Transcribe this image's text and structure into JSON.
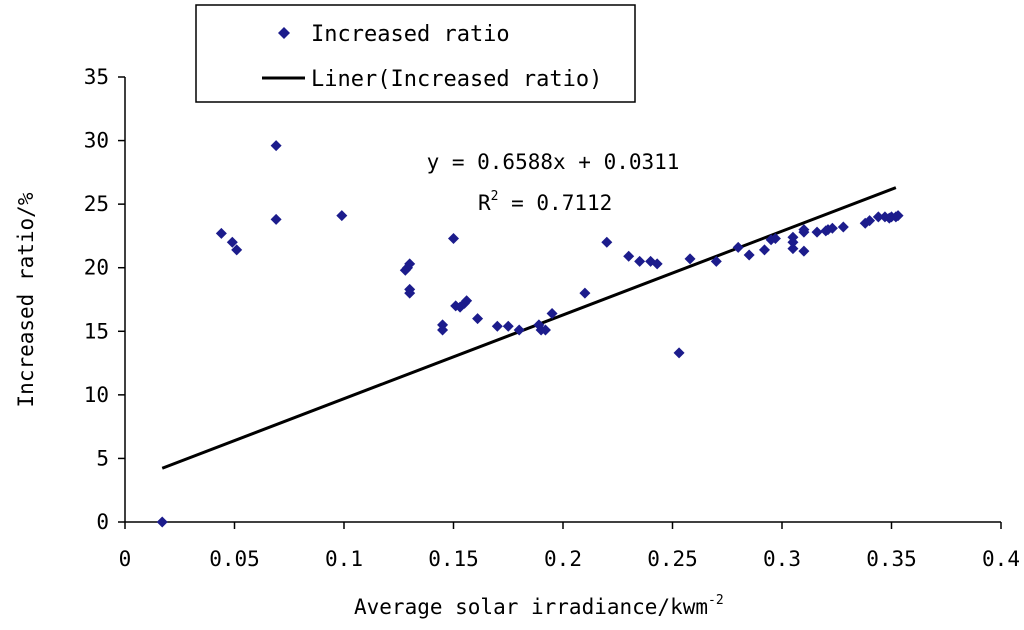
{
  "chart_data": {
    "type": "scatter",
    "xlabel": "Average solar irradiance/kwm",
    "xlabel_superscript": "-2",
    "ylabel": "Increased ratio/%",
    "xlim": [
      0,
      0.4
    ],
    "ylim": [
      0,
      35
    ],
    "xticks": [
      0,
      0.05,
      0.1,
      0.15,
      0.2,
      0.25,
      0.3,
      0.35,
      0.4
    ],
    "xtick_labels": [
      "0",
      "0.05",
      "0.1",
      "0.15",
      "0.2",
      "0.25",
      "0.3",
      "0.35",
      "0.4"
    ],
    "yticks": [
      0,
      5,
      10,
      15,
      20,
      25,
      30,
      35
    ],
    "ytick_labels": [
      "0",
      "5",
      "10",
      "15",
      "20",
      "25",
      "30",
      "35"
    ],
    "grid": false,
    "legend_position": "top-left",
    "series": [
      {
        "name": "Increased ratio",
        "marker": "diamond",
        "color": "#1c1c8c",
        "points": [
          [
            0.017,
            0.0
          ],
          [
            0.044,
            22.7
          ],
          [
            0.049,
            22.0
          ],
          [
            0.051,
            21.4
          ],
          [
            0.069,
            29.6
          ],
          [
            0.069,
            23.8
          ],
          [
            0.099,
            24.1
          ],
          [
            0.128,
            19.8
          ],
          [
            0.129,
            20.0
          ],
          [
            0.13,
            20.3
          ],
          [
            0.13,
            18.3
          ],
          [
            0.13,
            18.0
          ],
          [
            0.145,
            15.5
          ],
          [
            0.145,
            15.1
          ],
          [
            0.15,
            22.3
          ],
          [
            0.151,
            17.0
          ],
          [
            0.153,
            16.9
          ],
          [
            0.155,
            17.2
          ],
          [
            0.156,
            17.4
          ],
          [
            0.161,
            16.0
          ],
          [
            0.17,
            15.4
          ],
          [
            0.175,
            15.4
          ],
          [
            0.18,
            15.1
          ],
          [
            0.189,
            15.5
          ],
          [
            0.19,
            15.1
          ],
          [
            0.192,
            15.1
          ],
          [
            0.195,
            16.4
          ],
          [
            0.21,
            18.0
          ],
          [
            0.22,
            22.0
          ],
          [
            0.23,
            20.9
          ],
          [
            0.235,
            20.5
          ],
          [
            0.24,
            20.5
          ],
          [
            0.243,
            20.3
          ],
          [
            0.253,
            13.3
          ],
          [
            0.258,
            20.7
          ],
          [
            0.27,
            20.5
          ],
          [
            0.28,
            21.6
          ],
          [
            0.285,
            21.0
          ],
          [
            0.292,
            21.4
          ],
          [
            0.295,
            22.2
          ],
          [
            0.297,
            22.3
          ],
          [
            0.305,
            21.5
          ],
          [
            0.305,
            22.0
          ],
          [
            0.305,
            22.4
          ],
          [
            0.31,
            21.3
          ],
          [
            0.31,
            22.8
          ],
          [
            0.31,
            23.0
          ],
          [
            0.316,
            22.8
          ],
          [
            0.32,
            22.9
          ],
          [
            0.321,
            23.0
          ],
          [
            0.323,
            23.1
          ],
          [
            0.328,
            23.2
          ],
          [
            0.338,
            23.5
          ],
          [
            0.34,
            23.7
          ],
          [
            0.344,
            24.0
          ],
          [
            0.347,
            24.0
          ],
          [
            0.349,
            23.9
          ],
          [
            0.35,
            24.0
          ],
          [
            0.352,
            24.0
          ],
          [
            0.353,
            24.1
          ]
        ]
      },
      {
        "name": "Liner(Increased ratio)",
        "type": "line",
        "color": "#000000",
        "x_range": [
          0.017,
          0.352
        ],
        "slope": 0.6588,
        "intercept": 0.0311,
        "y_scale": 100
      }
    ],
    "annotation": {
      "equation": "y = 0.6588x + 0.0311",
      "r2_prefix": "R",
      "r2_superscript": "2",
      "r2_value": " = 0.7112"
    }
  }
}
